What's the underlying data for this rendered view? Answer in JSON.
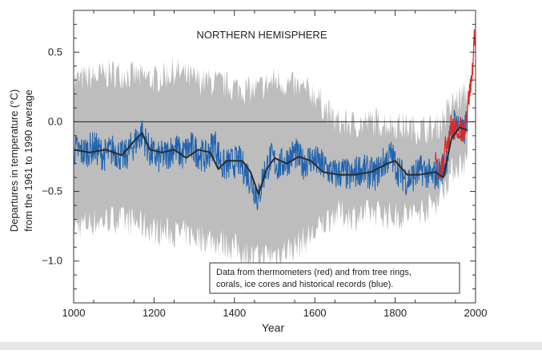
{
  "chart_data": {
    "type": "line",
    "title": "NORTHERN HEMISPHERE",
    "xlabel": "Year",
    "ylabel_lines": [
      "Departures in temperature (°C)",
      "from the 1961 to 1990 average"
    ],
    "xlim": [
      1000,
      2000
    ],
    "ylim": [
      -1.3,
      0.8
    ],
    "xticks": [
      1000,
      1200,
      1400,
      1600,
      1800,
      2000
    ],
    "yticks": [
      0.5,
      0.0,
      -0.5,
      -1.0
    ],
    "ytick_labels": [
      "0.5",
      "0.0",
      "−0.5",
      "−1.0"
    ],
    "zero_line": 0.0,
    "annotation_lines": [
      "Data from thermometers (red) and from tree rings,",
      "corals, ice cores and historical records (blue)."
    ],
    "colors": {
      "uncertainty": "#bdbdbd",
      "reconstruction": "#1f63b0",
      "smoothed": "#2a2a2a",
      "thermometer": "#e3271f"
    },
    "series": [
      {
        "role": "uncertainty-band",
        "x": [
          1000,
          1050,
          1100,
          1150,
          1200,
          1250,
          1300,
          1350,
          1400,
          1450,
          1500,
          1550,
          1600,
          1650,
          1700,
          1750,
          1800,
          1850,
          1900,
          1950,
          1980
        ],
        "upper": [
          0.3,
          0.32,
          0.35,
          0.33,
          0.3,
          0.36,
          0.3,
          0.28,
          0.25,
          0.22,
          0.3,
          0.25,
          0.2,
          0.0,
          -0.02,
          0.0,
          -0.02,
          -0.05,
          -0.05,
          0.15,
          0.2
        ],
        "lower": [
          -0.75,
          -0.72,
          -0.7,
          -0.72,
          -0.78,
          -0.8,
          -0.82,
          -0.85,
          -0.9,
          -0.98,
          -0.95,
          -0.9,
          -0.8,
          -0.65,
          -0.68,
          -0.65,
          -0.68,
          -0.66,
          -0.58,
          -0.32,
          -0.28
        ]
      },
      {
        "role": "reconstruction-annual",
        "x": [
          1000,
          1025,
          1050,
          1075,
          1100,
          1125,
          1150,
          1170,
          1190,
          1210,
          1230,
          1250,
          1270,
          1290,
          1310,
          1330,
          1350,
          1370,
          1390,
          1410,
          1430,
          1450,
          1460,
          1470,
          1490,
          1510,
          1530,
          1550,
          1570,
          1590,
          1610,
          1630,
          1650,
          1670,
          1690,
          1710,
          1730,
          1750,
          1770,
          1790,
          1810,
          1830,
          1850,
          1870,
          1890,
          1910,
          1925,
          1940,
          1950,
          1960,
          1970,
          1980
        ],
        "y": [
          -0.2,
          -0.22,
          -0.18,
          -0.24,
          -0.2,
          -0.26,
          -0.16,
          -0.08,
          -0.22,
          -0.26,
          -0.24,
          -0.18,
          -0.24,
          -0.18,
          -0.22,
          -0.26,
          -0.14,
          -0.32,
          -0.3,
          -0.28,
          -0.36,
          -0.48,
          -0.56,
          -0.4,
          -0.26,
          -0.32,
          -0.28,
          -0.22,
          -0.3,
          -0.26,
          -0.3,
          -0.34,
          -0.38,
          -0.36,
          -0.4,
          -0.34,
          -0.36,
          -0.38,
          -0.3,
          -0.24,
          -0.36,
          -0.42,
          -0.38,
          -0.34,
          -0.4,
          -0.36,
          -0.3,
          -0.08,
          0.02,
          -0.06,
          -0.1,
          0.04
        ]
      },
      {
        "role": "reconstruction-smoothed",
        "x": [
          1000,
          1040,
          1080,
          1120,
          1150,
          1170,
          1190,
          1220,
          1250,
          1280,
          1310,
          1340,
          1360,
          1380,
          1420,
          1440,
          1460,
          1480,
          1500,
          1530,
          1560,
          1590,
          1620,
          1660,
          1700,
          1740,
          1780,
          1800,
          1830,
          1860,
          1900,
          1920,
          1940,
          1960,
          1980
        ],
        "y": [
          -0.2,
          -0.22,
          -0.2,
          -0.24,
          -0.14,
          -0.08,
          -0.2,
          -0.22,
          -0.2,
          -0.26,
          -0.2,
          -0.22,
          -0.34,
          -0.28,
          -0.28,
          -0.36,
          -0.52,
          -0.34,
          -0.26,
          -0.3,
          -0.25,
          -0.28,
          -0.36,
          -0.38,
          -0.38,
          -0.36,
          -0.3,
          -0.28,
          -0.38,
          -0.38,
          -0.36,
          -0.4,
          -0.12,
          -0.04,
          -0.06
        ]
      },
      {
        "role": "thermometer",
        "x": [
          1900,
          1910,
          1920,
          1930,
          1940,
          1950,
          1960,
          1970,
          1980,
          1990,
          1998
        ],
        "y": [
          -0.3,
          -0.36,
          -0.26,
          -0.12,
          -0.02,
          -0.06,
          -0.04,
          -0.08,
          0.12,
          0.3,
          0.62
        ]
      }
    ]
  }
}
